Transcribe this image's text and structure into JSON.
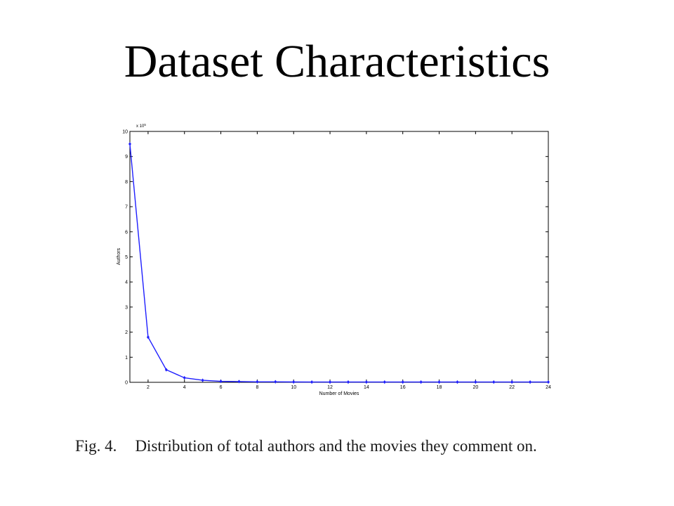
{
  "slide": {
    "title": "Dataset Characteristics"
  },
  "caption": {
    "prefix": "Fig. 4.",
    "text": "Distribution of total authors and the movies they comment on."
  },
  "chart_data": {
    "type": "line",
    "title": "",
    "xlabel": "Number of Movies",
    "ylabel": "Authors",
    "y_multiplier_label": "x 10",
    "y_multiplier_exponent": "5",
    "xlim": [
      1,
      24
    ],
    "ylim": [
      0,
      10
    ],
    "x_ticks": [
      2,
      4,
      6,
      8,
      10,
      12,
      14,
      16,
      18,
      20,
      22,
      24
    ],
    "y_ticks": [
      0,
      1,
      2,
      3,
      4,
      5,
      6,
      7,
      8,
      9,
      10
    ],
    "grid": false,
    "legend": "none",
    "series_color": "#1f1fff",
    "series": [
      {
        "x": [
          1,
          2,
          3,
          4,
          5,
          6,
          7,
          8,
          9,
          10,
          11,
          12,
          13,
          14,
          15,
          16,
          17,
          18,
          19,
          20,
          21,
          22,
          23,
          24
        ],
        "y": [
          9.5,
          1.8,
          0.5,
          0.18,
          0.08,
          0.04,
          0.03,
          0.02,
          0.02,
          0.015,
          0.01,
          0.01,
          0.01,
          0.01,
          0.01,
          0.01,
          0.01,
          0.01,
          0.01,
          0.01,
          0.01,
          0.01,
          0.01,
          0.01
        ]
      }
    ]
  }
}
